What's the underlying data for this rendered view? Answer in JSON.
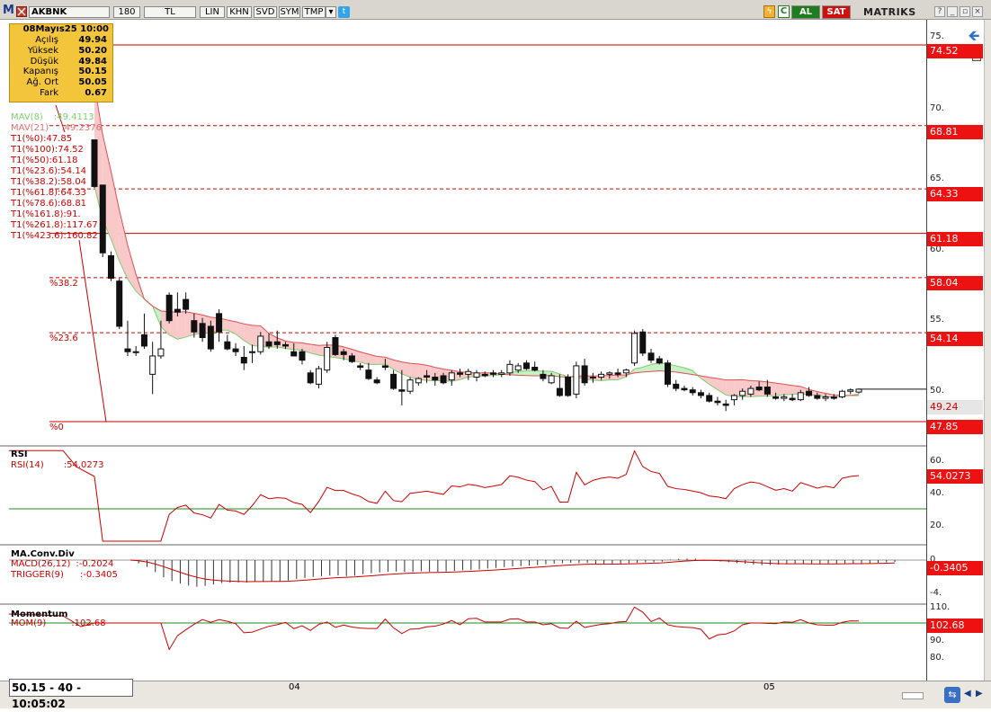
{
  "toolbar": {
    "symbol": "AKBNK",
    "period": "180",
    "currency": "TL",
    "buttons": [
      "LIN",
      "KHN",
      "SVD",
      "SYM",
      "TMP"
    ],
    "buy": "AL",
    "sell": "SAT",
    "brand": "MATRIKS",
    "m_logo": "M"
  },
  "infobox": {
    "date": "08Mayıs25 10:00",
    "rows": [
      {
        "label": "Açılış",
        "value": "49.94"
      },
      {
        "label": "Yüksek",
        "value": "50.20"
      },
      {
        "label": "Düşük",
        "value": "49.84"
      },
      {
        "label": "Kapanış",
        "value": "50.15"
      },
      {
        "label": "Ağ. Ort",
        "value": "50.05"
      },
      {
        "label": "Fark",
        "value": "0.67"
      }
    ]
  },
  "indicators": {
    "mav8": "MAV(8)",
    "mav8_val": ":49.4113",
    "mav21": "MAV(21)",
    "mav21_val": ":49.2376",
    "fib": [
      "T1(%0):47.85",
      "T1(%100):74.52",
      "T1(%50):61.18",
      "T1(%23.6):54.14",
      "T1(%38.2):58.04",
      "T1(%61.8):64.33",
      "T1(%78.6):68.81",
      "T1(%161.8):91.",
      "T1(%261.8):117.67",
      "T1(%423.6):160.82"
    ],
    "fib_inline": [
      "%38.2",
      "%23.6",
      "%0"
    ]
  },
  "price_tags": [
    "74.52",
    "68.81",
    "64.33",
    "61.18",
    "58.04",
    "54.14",
    "49.24",
    "47.85"
  ],
  "price_ticks": [
    "75.",
    "70.",
    "65.",
    "60.",
    "55.",
    "50."
  ],
  "rsi": {
    "title": "RSI",
    "label": "RSI(14)",
    "value": ":54.0273",
    "tag": "54.0273",
    "ticks": [
      "60.",
      "40.",
      "20."
    ]
  },
  "macd": {
    "title": "MA.Conv.Div",
    "macd_label": "MACD(26,12)",
    "macd_val": ":-0.2024",
    "trigger_label": "TRIGGER(9)",
    "trigger_val": ":-0.3405",
    "tag": "-0.3405",
    "ticks": [
      "0",
      "-4."
    ]
  },
  "momentum": {
    "title": "Momentum",
    "label": "MOM(9)",
    "value": ":102.68",
    "tag": "102.68",
    "ticks": [
      "110.",
      "90.",
      "80."
    ]
  },
  "status": "50.15 - 40 - 10:05:02",
  "dates": [
    "04",
    "05"
  ],
  "colors": {
    "up": "#ffffff",
    "down": "#111111",
    "fib": "#cc0000",
    "mav8": "#7ccf6f",
    "mav21": "#e05050",
    "rsi_line": "#cc0000",
    "guide": "#1e8a1e"
  },
  "chart_data": {
    "type": "candlestick",
    "ylim": [
      47.85,
      74.52
    ],
    "candles": [
      [
        67.8,
        67.8,
        64.4,
        64.5
      ],
      [
        64.6,
        64.6,
        59.5,
        59.8
      ],
      [
        59.6,
        59.9,
        57.8,
        58.0
      ],
      [
        57.8,
        58.0,
        54.4,
        54.6
      ],
      [
        53.0,
        55.0,
        52.5,
        52.8
      ],
      [
        52.8,
        53.2,
        52.5,
        52.8
      ],
      [
        54.0,
        55.5,
        53.0,
        53.2
      ],
      [
        51.2,
        53.5,
        49.8,
        52.5
      ],
      [
        52.5,
        55.0,
        52.3,
        53.0
      ],
      [
        56.8,
        57.0,
        54.8,
        55.0
      ],
      [
        55.8,
        57.0,
        55.3,
        55.6
      ],
      [
        56.5,
        57.0,
        55.5,
        55.8
      ],
      [
        55.0,
        55.5,
        53.8,
        54.2
      ],
      [
        54.8,
        55.2,
        53.5,
        53.8
      ],
      [
        54.6,
        55.0,
        52.8,
        53.0
      ],
      [
        55.5,
        55.8,
        53.5,
        54.2
      ],
      [
        53.5,
        54.0,
        52.9,
        53.0
      ],
      [
        53.0,
        53.4,
        52.5,
        52.8
      ],
      [
        52.4,
        53.2,
        51.5,
        52.0
      ],
      [
        52.8,
        53.3,
        52.0,
        52.8
      ],
      [
        52.8,
        54.2,
        52.6,
        53.9
      ],
      [
        53.5,
        54.1,
        53.0,
        53.2
      ],
      [
        53.5,
        54.3,
        53.0,
        53.3
      ],
      [
        53.3,
        53.5,
        53.0,
        53.2
      ],
      [
        52.8,
        53.4,
        52.5,
        52.5
      ],
      [
        52.8,
        53.0,
        51.9,
        52.2
      ],
      [
        51.3,
        51.5,
        50.5,
        50.6
      ],
      [
        50.5,
        51.8,
        50.2,
        51.6
      ],
      [
        51.5,
        53.5,
        51.3,
        53.1
      ],
      [
        53.8,
        54.0,
        52.5,
        52.6
      ],
      [
        52.8,
        53.0,
        52.2,
        52.6
      ],
      [
        52.5,
        52.7,
        52.0,
        52.1
      ],
      [
        51.8,
        52.0,
        51.5,
        51.7
      ],
      [
        51.5,
        52.0,
        50.8,
        50.9
      ],
      [
        50.8,
        51.0,
        50.5,
        50.6
      ],
      [
        51.8,
        52.3,
        51.5,
        51.7
      ],
      [
        51.2,
        51.5,
        50.1,
        50.2
      ],
      [
        50.1,
        51.5,
        49.0,
        50.0
      ],
      [
        50.0,
        51.0,
        49.8,
        50.8
      ],
      [
        50.6,
        51.0,
        50.4,
        50.9
      ],
      [
        51.1,
        51.5,
        50.6,
        51.0
      ],
      [
        51.0,
        51.3,
        50.4,
        50.8
      ],
      [
        51.1,
        51.3,
        50.5,
        50.6
      ],
      [
        50.8,
        51.5,
        50.4,
        51.3
      ],
      [
        51.3,
        51.6,
        51.0,
        51.2
      ],
      [
        51.2,
        51.6,
        50.8,
        51.4
      ],
      [
        51.0,
        51.5,
        50.7,
        51.3
      ],
      [
        51.2,
        51.4,
        51.0,
        51.1
      ],
      [
        51.3,
        51.5,
        51.0,
        51.2
      ],
      [
        51.2,
        51.5,
        51.0,
        51.3
      ],
      [
        51.3,
        52.2,
        51.1,
        51.9
      ],
      [
        51.5,
        52.0,
        51.3,
        51.8
      ],
      [
        52.0,
        52.2,
        51.5,
        51.6
      ],
      [
        51.7,
        52.1,
        51.4,
        51.5
      ],
      [
        51.2,
        51.5,
        50.7,
        50.9
      ],
      [
        50.6,
        51.3,
        50.5,
        51.1
      ],
      [
        50.2,
        51.2,
        49.6,
        49.7
      ],
      [
        51.0,
        51.2,
        49.6,
        49.7
      ],
      [
        49.8,
        52.1,
        49.5,
        51.8
      ],
      [
        51.8,
        52.3,
        50.4,
        50.6
      ],
      [
        51.0,
        51.3,
        50.6,
        51.0
      ],
      [
        51.0,
        51.4,
        50.8,
        51.2
      ],
      [
        51.2,
        51.4,
        50.9,
        51.3
      ],
      [
        51.3,
        51.6,
        51.0,
        51.2
      ],
      [
        51.3,
        51.6,
        51.0,
        51.5
      ],
      [
        52.0,
        54.3,
        51.8,
        54.1
      ],
      [
        54.2,
        54.4,
        52.5,
        52.7
      ],
      [
        52.7,
        53.0,
        52.0,
        52.2
      ],
      [
        52.3,
        52.5,
        51.9,
        52.0
      ],
      [
        52.0,
        52.2,
        50.3,
        50.5
      ],
      [
        50.5,
        50.8,
        50.0,
        50.2
      ],
      [
        50.2,
        50.4,
        50.0,
        50.1
      ],
      [
        50.1,
        50.3,
        49.7,
        49.9
      ],
      [
        49.9,
        50.1,
        49.5,
        49.7
      ],
      [
        49.7,
        49.9,
        49.2,
        49.3
      ],
      [
        49.3,
        49.6,
        49.0,
        49.2
      ],
      [
        49.1,
        49.4,
        48.6,
        49.0
      ],
      [
        49.4,
        49.8,
        49.0,
        49.7
      ],
      [
        49.7,
        50.2,
        49.4,
        50.0
      ],
      [
        49.8,
        50.4,
        49.6,
        50.2
      ],
      [
        50.3,
        50.7,
        50.0,
        50.1
      ],
      [
        50.3,
        50.8,
        49.6,
        49.8
      ],
      [
        49.6,
        49.9,
        49.4,
        49.5
      ],
      [
        49.5,
        49.8,
        49.3,
        49.6
      ],
      [
        49.5,
        49.8,
        49.3,
        49.4
      ],
      [
        49.4,
        50.1,
        49.3,
        49.9
      ],
      [
        50.0,
        50.3,
        49.6,
        49.7
      ],
      [
        49.7,
        49.9,
        49.4,
        49.5
      ],
      [
        49.5,
        49.8,
        49.3,
        49.6
      ],
      [
        49.6,
        49.8,
        49.4,
        49.5
      ],
      [
        49.6,
        50.1,
        49.5,
        50.0
      ],
      [
        50.0,
        50.2,
        49.8,
        50.1
      ],
      [
        49.94,
        50.2,
        49.84,
        50.15
      ]
    ],
    "mav8": [],
    "mav21": []
  }
}
